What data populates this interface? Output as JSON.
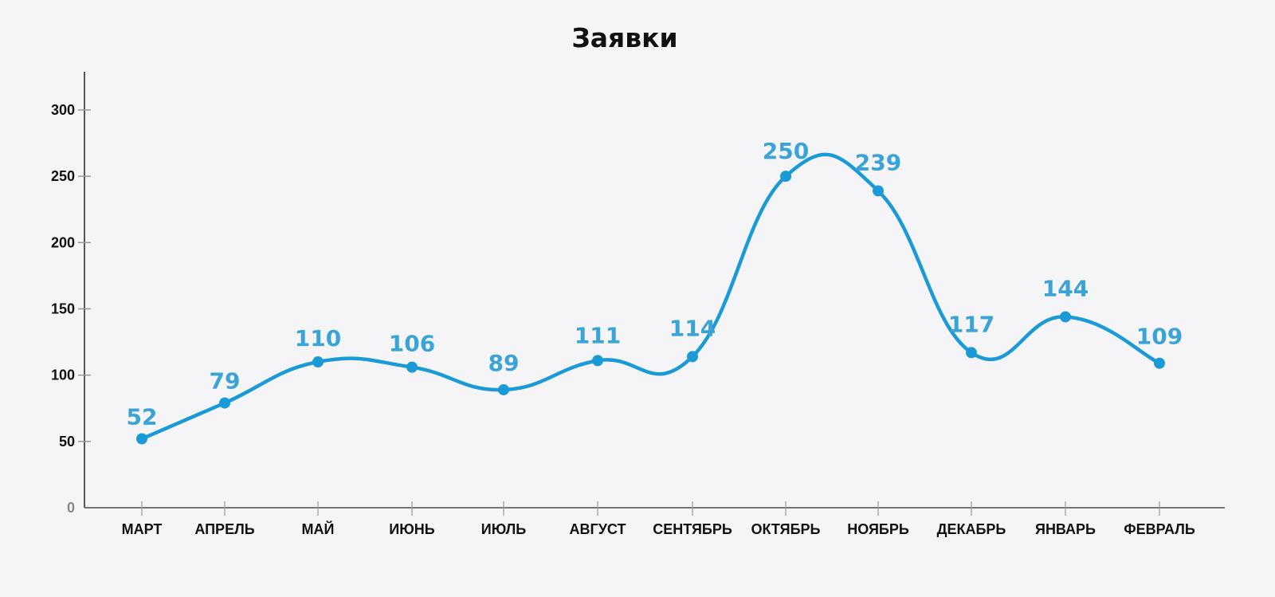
{
  "chart_data": {
    "type": "line",
    "title": "Заявки",
    "xlabel": "",
    "ylabel": "",
    "categories": [
      "МАРТ",
      "АПРЕЛЬ",
      "МАЙ",
      "ИЮНЬ",
      "ИЮЛЬ",
      "АВГУСТ",
      "СЕНТЯБРЬ",
      "ОКТЯБРЬ",
      "НОЯБРЬ",
      "ДЕКАБРЬ",
      "ЯНВАРЬ",
      "ФЕВРАЛЬ"
    ],
    "series": [
      {
        "name": "Заявки",
        "values": [
          52,
          79,
          110,
          106,
          89,
          111,
          114,
          250,
          239,
          117,
          144,
          109
        ]
      }
    ],
    "yticks": [
      0,
      50,
      100,
      150,
      200,
      250,
      300
    ],
    "ylim": [
      0,
      300
    ],
    "grid": false,
    "legend": false,
    "data_labels": true,
    "smooth": true,
    "colors": {
      "line": "#1a9ad6",
      "label": "#3aa3d8",
      "axis": "#222222",
      "tick": "#999999",
      "background": "#f5f5f7"
    }
  }
}
